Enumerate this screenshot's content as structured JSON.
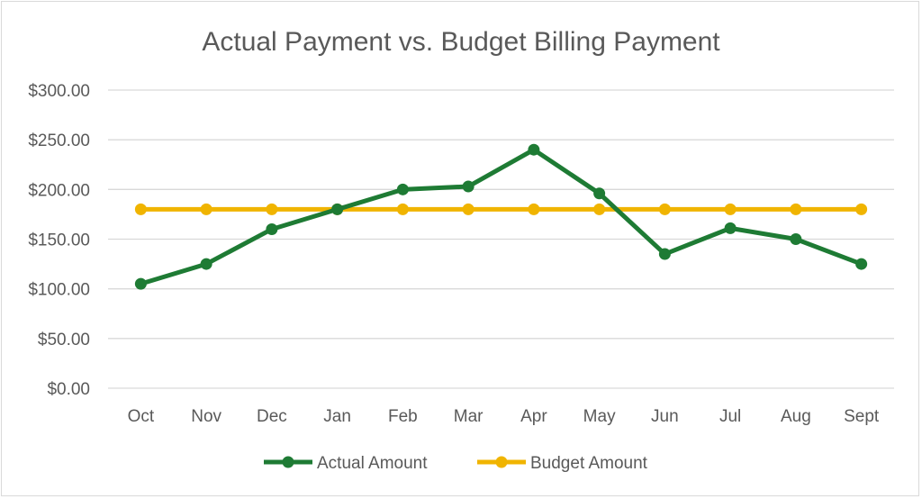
{
  "chart_data": {
    "type": "line",
    "title": "Actual Payment vs. Budget Billing Payment",
    "xlabel": "",
    "ylabel": "",
    "categories": [
      "Oct",
      "Nov",
      "Dec",
      "Jan",
      "Feb",
      "Mar",
      "Apr",
      "May",
      "Jun",
      "Jul",
      "Aug",
      "Sept"
    ],
    "ylim": [
      0,
      300
    ],
    "yticks": [
      0,
      50,
      100,
      150,
      200,
      250,
      300
    ],
    "ytick_labels": [
      "$0.00",
      "$50.00",
      "$100.00",
      "$150.00",
      "$200.00",
      "$250.00",
      "$300.00"
    ],
    "grid": true,
    "legend_position": "bottom",
    "series": [
      {
        "name": "Actual Amount",
        "color": "#1e7b34",
        "values": [
          105,
          125,
          160,
          180,
          200,
          203,
          240,
          196,
          135,
          161,
          150,
          125
        ]
      },
      {
        "name": "Budget Amount",
        "color": "#f0b400",
        "values": [
          180,
          180,
          180,
          180,
          180,
          180,
          180,
          180,
          180,
          180,
          180,
          180
        ]
      }
    ]
  }
}
